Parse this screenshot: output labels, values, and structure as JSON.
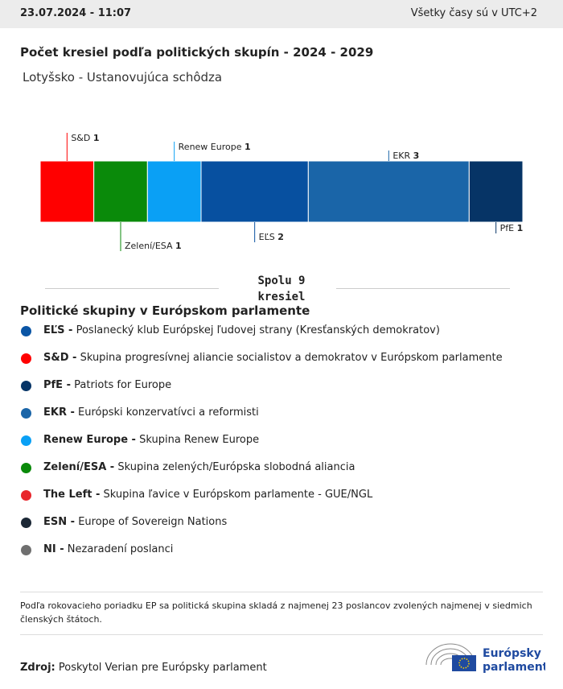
{
  "header": {
    "timestamp": "23.07.2024 - 11:07",
    "timezone_note": "Všetky časy sú v UTC+2"
  },
  "chart_data": {
    "type": "stacked-bar",
    "title": "Počet kresiel podľa politických skupín - 2024 - 2029",
    "subtitle": "Lotyšsko - Ustanovujúca schôdza",
    "categories": [
      "S&D",
      "Zelení/ESA",
      "Renew Europe",
      "EĽS",
      "EKR",
      "PfE"
    ],
    "values": [
      1,
      1,
      1,
      2,
      3,
      1
    ],
    "colors": [
      "#ff0000",
      "#0a8a0a",
      "#0aa0f5",
      "#0750a0",
      "#1a65a8",
      "#063466"
    ],
    "xlim": [
      0,
      9
    ],
    "total_label": "Spolu 9 kresiel"
  },
  "legend": {
    "title": "Politické skupiny v Európskom parlamente",
    "items": [
      {
        "abbr": "EĽS -",
        "desc": "Poslanecký klub Európskej ľudovej strany (Kresťanských demokratov)",
        "color": "#0a55a5"
      },
      {
        "abbr": "S&D -",
        "desc": "Skupina progresívnej aliancie socialistov a demokratov v Európskom parlamente",
        "color": "#ff0000"
      },
      {
        "abbr": "PfE -",
        "desc": "Patriots for Europe",
        "color": "#063466"
      },
      {
        "abbr": "EKR -",
        "desc": "Európski konzervatívci a reformisti",
        "color": "#1a65a8"
      },
      {
        "abbr": "Renew Europe -",
        "desc": "Skupina Renew Europe",
        "color": "#0aa0f5"
      },
      {
        "abbr": "Zelení/ESA -",
        "desc": "Skupina zelených/Európska slobodná aliancia",
        "color": "#0a8a0a"
      },
      {
        "abbr": "The Left -",
        "desc": "Skupina ľavice v Európskom parlamente - GUE/NGL",
        "color": "#e8262c"
      },
      {
        "abbr": "ESN -",
        "desc": "Europe of Sovereign Nations",
        "color": "#1c2836"
      },
      {
        "abbr": "NI -",
        "desc": "Nezaradení poslanci",
        "color": "#6f6f6f"
      }
    ]
  },
  "footer": {
    "note": "Podľa rokovacieho poriadku EP sa politická skupina skladá z najmenej 23 poslancov zvolených najmenej v siedmich členských štátoch.",
    "source_label": "Zdroj:",
    "source": "Poskytol Verian pre Európsky parlament",
    "logo_line1": "Európsky",
    "logo_line2": "parlament"
  }
}
